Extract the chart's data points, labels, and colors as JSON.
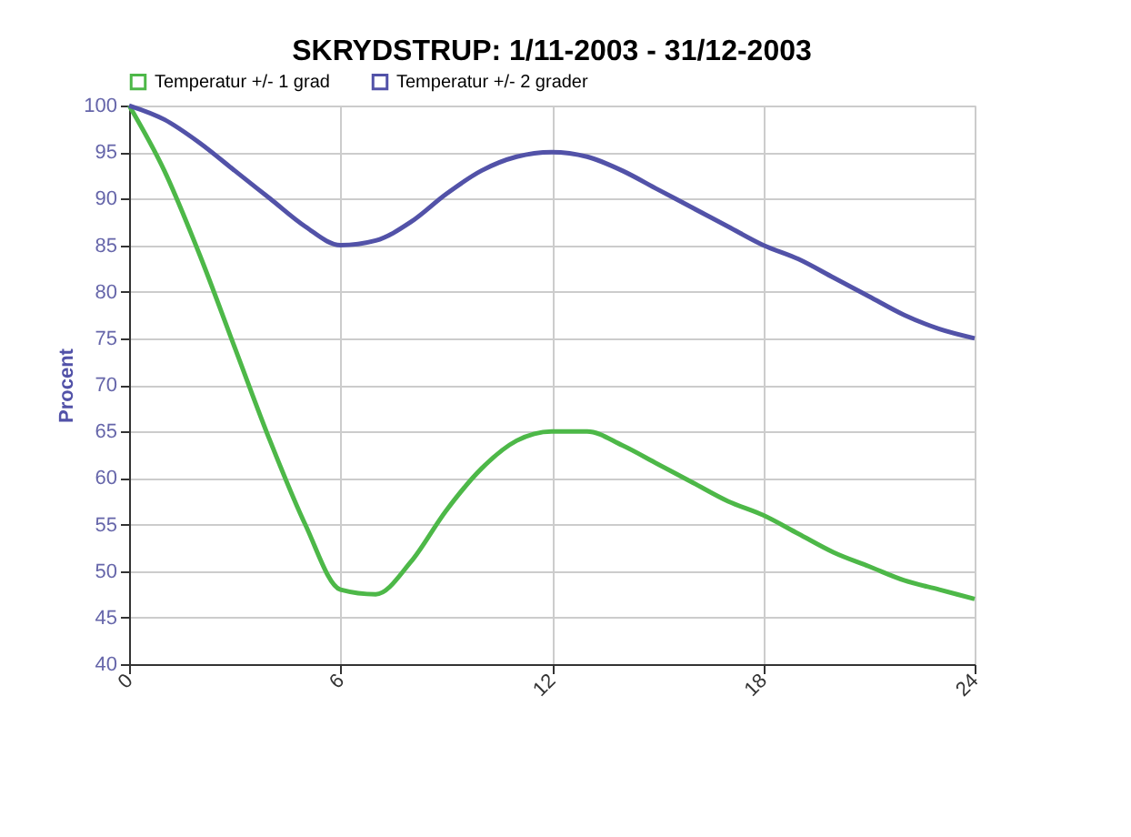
{
  "chart_data": {
    "type": "line",
    "title": "SKRYDSTRUP: 1/11-2003 - 31/12-2003",
    "ylabel": "Procent",
    "x": [
      0,
      1,
      2,
      3,
      4,
      5,
      6,
      7,
      8,
      9,
      10,
      11,
      12,
      13,
      14,
      15,
      16,
      17,
      18,
      19,
      20,
      21,
      22,
      23,
      24
    ],
    "series": [
      {
        "name": "Temperatur +/- 1 grad",
        "color": "#4db848",
        "values": [
          100,
          93,
          84,
          74,
          64,
          55,
          48,
          47.5,
          51,
          56.5,
          61,
          64,
          65,
          65,
          63.5,
          61.5,
          59.5,
          57.5,
          56,
          54,
          52,
          50.5,
          49,
          48,
          47
        ]
      },
      {
        "name": "Temperatur +/- 2 grader",
        "color": "#5252a8",
        "values": [
          100,
          98.5,
          96,
          93,
          90,
          87,
          85,
          85.5,
          87.5,
          90.5,
          93,
          94.5,
          95,
          94.5,
          93,
          91,
          89,
          87,
          85,
          83.5,
          81.5,
          79.5,
          77.5,
          76,
          75
        ]
      }
    ],
    "xlim": [
      0,
      24
    ],
    "xticks": [
      0,
      6,
      12,
      18,
      24
    ],
    "ylim": [
      40,
      100
    ],
    "yticks": [
      40,
      45,
      50,
      55,
      60,
      65,
      70,
      75,
      80,
      85,
      90,
      95,
      100
    ],
    "grid": true,
    "legend": "top left",
    "marker": "none",
    "line_style": "solid"
  }
}
